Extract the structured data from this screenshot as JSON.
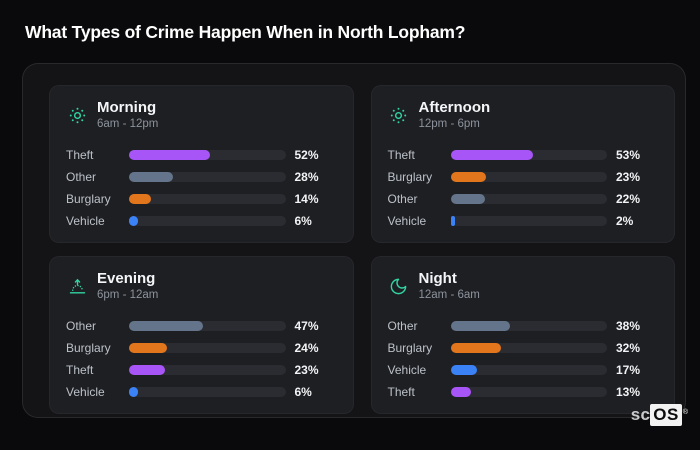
{
  "page_title": "What Types of Crime Happen When in North Lopham?",
  "watermark": {
    "prefix": "sc",
    "brand": "OS",
    "registered": "®"
  },
  "colors": {
    "theft": "#a855f7",
    "other": "#64748b",
    "burglary": "#e2761d",
    "vehicle": "#3b82f6",
    "accent_teal": "#30d5a2",
    "track": "#2b2c31",
    "panel_bg": "#141417",
    "card_bg": "#1e1f23",
    "page_bg": "#0a0a0c"
  },
  "periods": [
    {
      "id": "morning",
      "title": "Morning",
      "time_range": "6am - 12pm",
      "icon": "sun-icon",
      "rows": [
        {
          "label": "Theft",
          "pct": 52,
          "value_label": "52%",
          "color": "theft"
        },
        {
          "label": "Other",
          "pct": 28,
          "value_label": "28%",
          "color": "other"
        },
        {
          "label": "Burglary",
          "pct": 14,
          "value_label": "14%",
          "color": "burglary"
        },
        {
          "label": "Vehicle",
          "pct": 6,
          "value_label": "6%",
          "color": "vehicle"
        }
      ]
    },
    {
      "id": "afternoon",
      "title": "Afternoon",
      "time_range": "12pm - 6pm",
      "icon": "sun-icon",
      "rows": [
        {
          "label": "Theft",
          "pct": 53,
          "value_label": "53%",
          "color": "theft"
        },
        {
          "label": "Burglary",
          "pct": 23,
          "value_label": "23%",
          "color": "burglary"
        },
        {
          "label": "Other",
          "pct": 22,
          "value_label": "22%",
          "color": "other"
        },
        {
          "label": "Vehicle",
          "pct": 2,
          "value_label": "2%",
          "color": "vehicle"
        }
      ]
    },
    {
      "id": "evening",
      "title": "Evening",
      "time_range": "6pm - 12am",
      "icon": "sunset-icon",
      "rows": [
        {
          "label": "Other",
          "pct": 47,
          "value_label": "47%",
          "color": "other"
        },
        {
          "label": "Burglary",
          "pct": 24,
          "value_label": "24%",
          "color": "burglary"
        },
        {
          "label": "Theft",
          "pct": 23,
          "value_label": "23%",
          "color": "theft"
        },
        {
          "label": "Vehicle",
          "pct": 6,
          "value_label": "6%",
          "color": "vehicle"
        }
      ]
    },
    {
      "id": "night",
      "title": "Night",
      "time_range": "12am - 6am",
      "icon": "moon-icon",
      "rows": [
        {
          "label": "Other",
          "pct": 38,
          "value_label": "38%",
          "color": "other"
        },
        {
          "label": "Burglary",
          "pct": 32,
          "value_label": "32%",
          "color": "burglary"
        },
        {
          "label": "Vehicle",
          "pct": 17,
          "value_label": "17%",
          "color": "vehicle"
        },
        {
          "label": "Theft",
          "pct": 13,
          "value_label": "13%",
          "color": "theft"
        }
      ]
    }
  ],
  "chart_data": [
    {
      "type": "bar",
      "orientation": "horizontal",
      "title": "Morning",
      "subtitle": "6am - 12pm",
      "categories": [
        "Theft",
        "Other",
        "Burglary",
        "Vehicle"
      ],
      "values": [
        52,
        28,
        14,
        6
      ],
      "unit": "%",
      "xlim": [
        0,
        100
      ],
      "grid": false,
      "bar_colors": [
        "#a855f7",
        "#64748b",
        "#e2761d",
        "#3b82f6"
      ]
    },
    {
      "type": "bar",
      "orientation": "horizontal",
      "title": "Afternoon",
      "subtitle": "12pm - 6pm",
      "categories": [
        "Theft",
        "Burglary",
        "Other",
        "Vehicle"
      ],
      "values": [
        53,
        23,
        22,
        2
      ],
      "unit": "%",
      "xlim": [
        0,
        100
      ],
      "grid": false,
      "bar_colors": [
        "#a855f7",
        "#e2761d",
        "#64748b",
        "#3b82f6"
      ]
    },
    {
      "type": "bar",
      "orientation": "horizontal",
      "title": "Evening",
      "subtitle": "6pm - 12am",
      "categories": [
        "Other",
        "Burglary",
        "Theft",
        "Vehicle"
      ],
      "values": [
        47,
        24,
        23,
        6
      ],
      "unit": "%",
      "xlim": [
        0,
        100
      ],
      "grid": false,
      "bar_colors": [
        "#64748b",
        "#e2761d",
        "#a855f7",
        "#3b82f6"
      ]
    },
    {
      "type": "bar",
      "orientation": "horizontal",
      "title": "Night",
      "subtitle": "12am - 6am",
      "categories": [
        "Other",
        "Burglary",
        "Vehicle",
        "Theft"
      ],
      "values": [
        38,
        32,
        17,
        13
      ],
      "unit": "%",
      "xlim": [
        0,
        100
      ],
      "grid": false,
      "bar_colors": [
        "#64748b",
        "#e2761d",
        "#3b82f6",
        "#a855f7"
      ]
    }
  ]
}
